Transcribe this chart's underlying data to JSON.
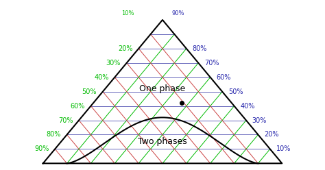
{
  "bg_color": "#ffffff",
  "grid_blue_color": "#6666bb",
  "grid_green_color": "#00bb00",
  "grid_red_color": "#cc4444",
  "triangle_color": "#000000",
  "curve_color": "#000000",
  "label_left_color": "#00bb00",
  "label_right_color": "#2222aa",
  "one_phase_label": "One phase",
  "two_phase_label": "Two phases",
  "left_labels": [
    20,
    30,
    40,
    50,
    60,
    70,
    80,
    90
  ],
  "right_labels": [
    80,
    70,
    60,
    50,
    40,
    30,
    20,
    10
  ],
  "figwidth": 4.74,
  "figheight": 2.48,
  "dpi": 100
}
